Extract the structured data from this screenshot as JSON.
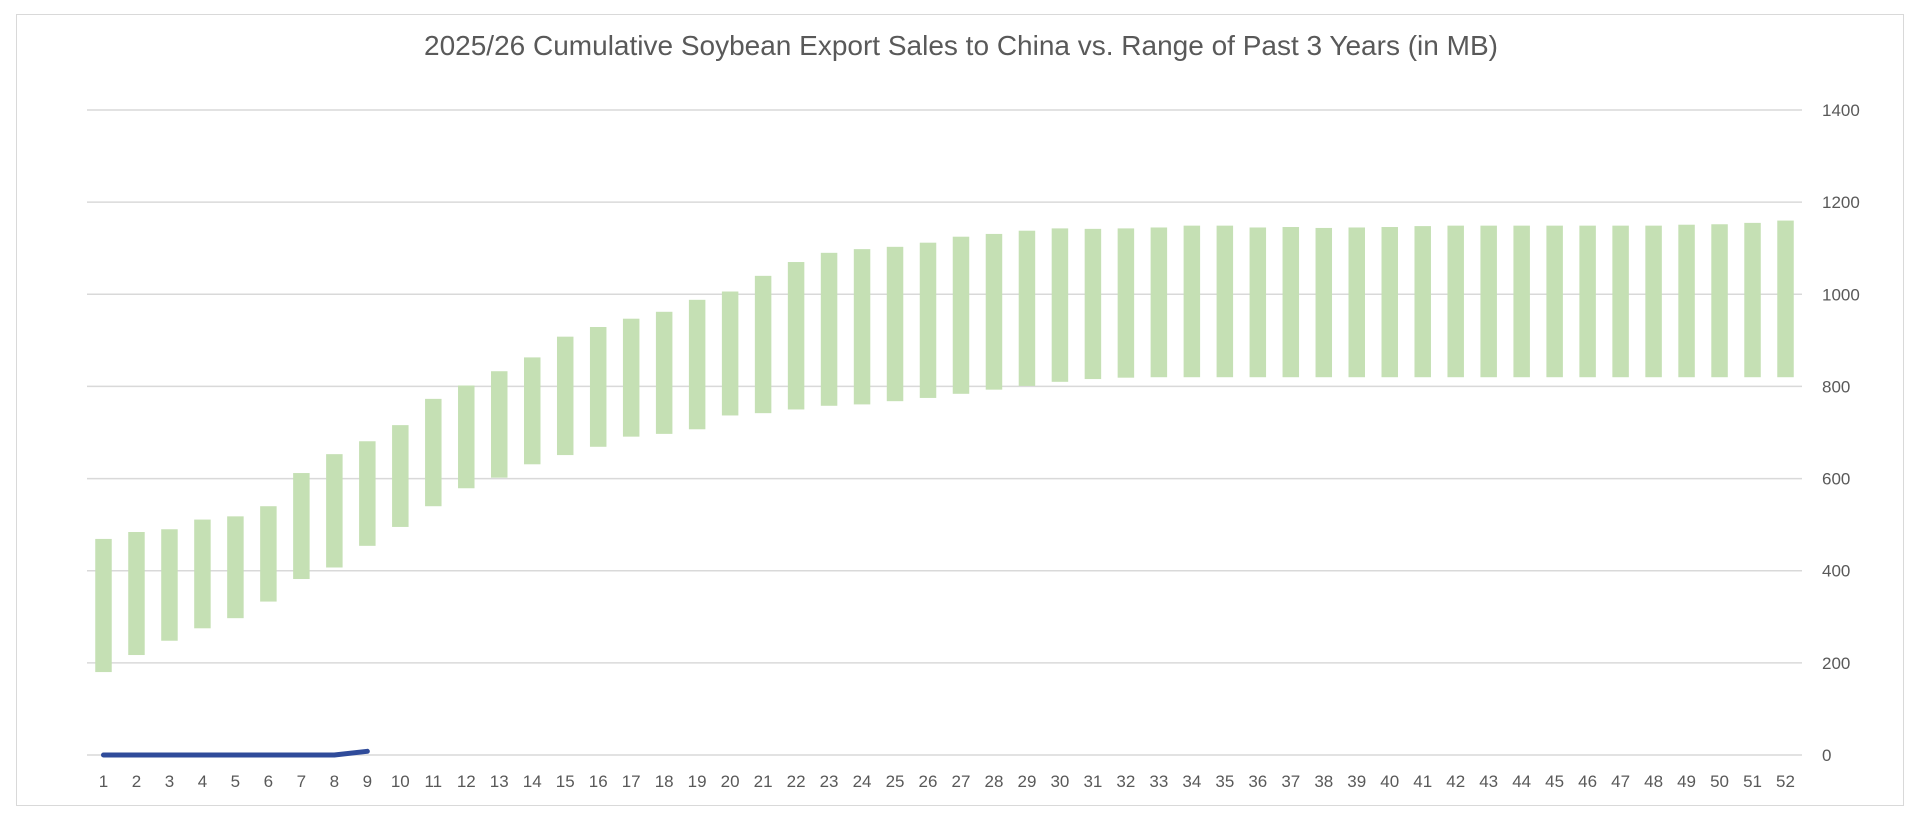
{
  "chart_data": {
    "type": "bar",
    "title": "2025/26 Cumulative Soybean Export Sales to China vs. Range of Past 3 Years (in MB)",
    "xlabel": "",
    "ylabel": "",
    "y_axis_position": "right",
    "ylim": [
      0,
      1400
    ],
    "yticks": [
      0,
      200,
      400,
      600,
      800,
      1000,
      1200,
      1400
    ],
    "grid": true,
    "legend": "none",
    "categories": [
      "1",
      "2",
      "3",
      "4",
      "5",
      "6",
      "7",
      "8",
      "9",
      "10",
      "11",
      "12",
      "13",
      "14",
      "15",
      "16",
      "17",
      "18",
      "19",
      "20",
      "21",
      "22",
      "23",
      "24",
      "25",
      "26",
      "27",
      "28",
      "29",
      "30",
      "31",
      "32",
      "33",
      "34",
      "35",
      "36",
      "37",
      "38",
      "39",
      "40",
      "41",
      "42",
      "43",
      "44",
      "45",
      "46",
      "47",
      "48",
      "49",
      "50",
      "51",
      "52"
    ],
    "series": [
      {
        "kind": "floating_bar_range",
        "color": "#c5e0b4",
        "low": [
          180,
          217,
          248,
          275,
          297,
          333,
          382,
          407,
          454,
          495,
          540,
          579,
          602,
          631,
          651,
          669,
          691,
          697,
          707,
          737,
          742,
          750,
          758,
          761,
          768,
          775,
          784,
          793,
          801,
          810,
          816,
          819,
          820,
          820,
          820,
          820,
          820,
          820,
          820,
          820,
          820,
          820,
          820,
          820,
          820,
          820,
          820,
          820,
          820,
          820,
          820,
          820
        ],
        "high": [
          469,
          484,
          490,
          511,
          518,
          540,
          612,
          653,
          681,
          716,
          773,
          802,
          833,
          863,
          908,
          929,
          947,
          962,
          988,
          1006,
          1040,
          1070,
          1090,
          1098,
          1103,
          1112,
          1125,
          1131,
          1138,
          1143,
          1142,
          1143,
          1145,
          1149,
          1149,
          1145,
          1146,
          1144,
          1145,
          1146,
          1148,
          1149,
          1149,
          1149,
          1149,
          1149,
          1149,
          1149,
          1151,
          1152,
          1155,
          1160
        ]
      },
      {
        "kind": "line",
        "color": "#2f4b9a",
        "x": [
          "1",
          "2",
          "3",
          "4",
          "5",
          "6",
          "7",
          "8",
          "9"
        ],
        "values": [
          0,
          0,
          0,
          0,
          0,
          0,
          0,
          0,
          8
        ]
      }
    ]
  }
}
